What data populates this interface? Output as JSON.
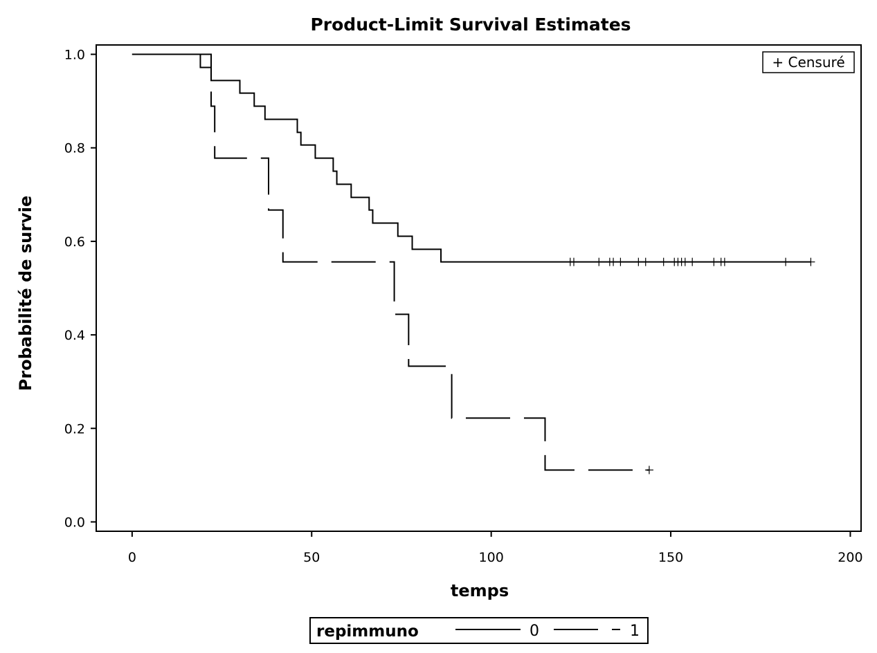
{
  "chart_data": {
    "type": "line",
    "title": "Product-Limit Survival Estimates",
    "xlabel": "temps",
    "ylabel": "Probabilité de survie",
    "xlim": [
      -10,
      203
    ],
    "ylim": [
      -0.02,
      1.02
    ],
    "x_ticks": [
      0,
      50,
      100,
      150,
      200
    ],
    "x_tick_labels": [
      "0",
      "50",
      "100",
      "150",
      "200"
    ],
    "y_ticks": [
      0.0,
      0.2,
      0.4,
      0.6,
      0.8,
      1.0
    ],
    "y_tick_labels": [
      "0.0",
      "0.2",
      "0.4",
      "0.6",
      "0.8",
      "1.0"
    ],
    "grid": false,
    "censor_legend": "+ Censuré",
    "legend_title": "repimmuno",
    "series": [
      {
        "name": "0",
        "style": "solid",
        "steps": [
          [
            0,
            1.0
          ],
          [
            19,
            0.972
          ],
          [
            22,
            0.944
          ],
          [
            30,
            0.917
          ],
          [
            34,
            0.889
          ],
          [
            37,
            0.861
          ],
          [
            46,
            0.833
          ],
          [
            47,
            0.806
          ],
          [
            51,
            0.778
          ],
          [
            56,
            0.75
          ],
          [
            57,
            0.722
          ],
          [
            61,
            0.694
          ],
          [
            66,
            0.667
          ],
          [
            67,
            0.639
          ],
          [
            74,
            0.611
          ],
          [
            78,
            0.583
          ],
          [
            86,
            0.556
          ],
          [
            189,
            0.556
          ]
        ],
        "censored": [
          122,
          123,
          130,
          133,
          134,
          136,
          141,
          143,
          148,
          151,
          152,
          153,
          154,
          156,
          162,
          164,
          165,
          182,
          189
        ]
      },
      {
        "name": "1",
        "style": "dashed",
        "steps": [
          [
            0,
            1.0
          ],
          [
            22,
            0.889
          ],
          [
            23,
            0.778
          ],
          [
            38,
            0.667
          ],
          [
            42,
            0.556
          ],
          [
            73,
            0.444
          ],
          [
            77,
            0.333
          ],
          [
            89,
            0.222
          ],
          [
            115,
            0.111
          ],
          [
            144,
            0.111
          ]
        ],
        "censored": [
          144
        ]
      }
    ]
  },
  "colors": {
    "line": "#000000",
    "background": "#ffffff"
  }
}
